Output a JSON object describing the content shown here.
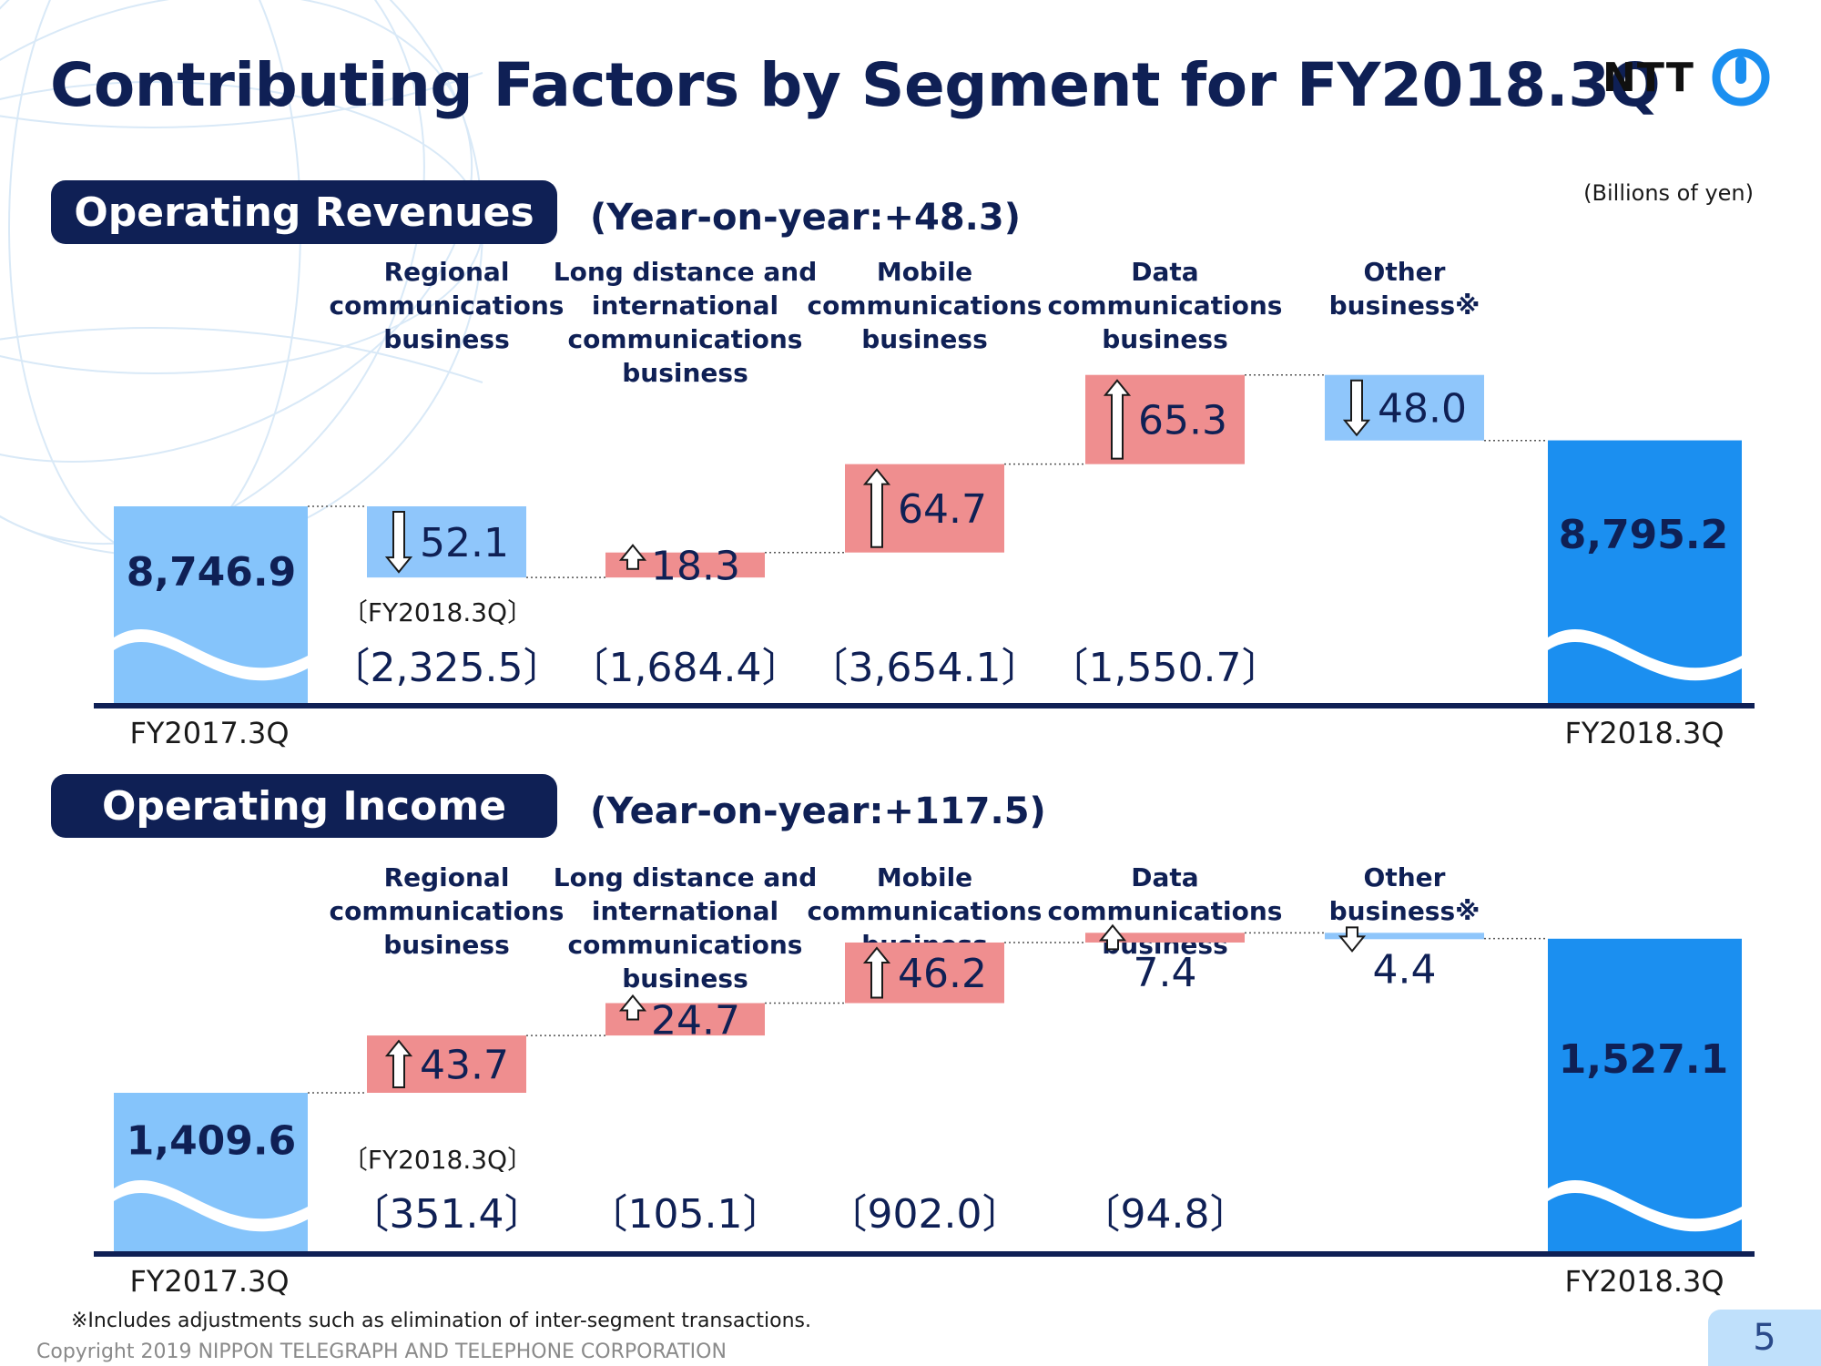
{
  "title": "Contributing Factors by Segment for FY2018.3Q",
  "logo": {
    "text": "NTT"
  },
  "units": "(Billions of yen)",
  "footnote": "※Includes adjustments such as elimination of inter-segment transactions.",
  "copyright": "Copyright 2019 NIPPON TELEGRAPH AND TELEPHONE CORPORATION",
  "page_number": "5",
  "colors": {
    "navy": "#0f2055",
    "increase": "#ef8e8f",
    "decrease": "#8fc6fb",
    "total_fy2017": "#85c4fb",
    "total_fy2018": "#1b8ff0"
  },
  "sections": [
    {
      "heading": "Operating Revenues",
      "yoy": "(Year-on-year:+48.3)"
    },
    {
      "heading": "Operating Income",
      "yoy": "(Year-on-year:+117.5)"
    }
  ],
  "chart_data": [
    {
      "type": "bar",
      "subtype": "waterfall",
      "title": "Operating Revenues",
      "start": {
        "label": "FY2017.3Q",
        "value": 8746.9,
        "value_label": "8,746.9"
      },
      "end": {
        "label": "FY2018.3Q",
        "value": 8795.2,
        "value_label": "8,795.2"
      },
      "steps": [
        {
          "category": "Regional communications business",
          "change": -52.1,
          "change_label": "52.1",
          "fy2018_label": "〔2,325.5〕"
        },
        {
          "category": "Long distance and international communications business",
          "change": 18.3,
          "change_label": "18.3",
          "fy2018_label": "〔1,684.4〕"
        },
        {
          "category": "Mobile communications business",
          "change": 64.7,
          "change_label": "64.7",
          "fy2018_label": "〔3,654.1〕"
        },
        {
          "category": "Data communications business",
          "change": 65.3,
          "change_label": "65.3",
          "fy2018_label": "〔1,550.7〕"
        },
        {
          "category": "Other business※",
          "change": -48.0,
          "change_label": "48.0",
          "fy2018_label": ""
        }
      ],
      "fy2018_caption": "〔FY2018.3Q〕"
    },
    {
      "type": "bar",
      "subtype": "waterfall",
      "title": "Operating Income",
      "start": {
        "label": "FY2017.3Q",
        "value": 1409.6,
        "value_label": "1,409.6"
      },
      "end": {
        "label": "FY2018.3Q",
        "value": 1527.1,
        "value_label": "1,527.1"
      },
      "steps": [
        {
          "category": "Regional communications business",
          "change": 43.7,
          "change_label": "43.7",
          "fy2018_label": "〔351.4〕"
        },
        {
          "category": "Long distance and international communications business",
          "change": 24.7,
          "change_label": "24.7",
          "fy2018_label": "〔105.1〕"
        },
        {
          "category": "Mobile communications business",
          "change": 46.2,
          "change_label": "46.2",
          "fy2018_label": "〔902.0〕"
        },
        {
          "category": "Data communications business",
          "change": 7.4,
          "change_label": "7.4",
          "fy2018_label": "〔94.8〕"
        },
        {
          "category": "Other business※",
          "change": -4.4,
          "change_label": "4.4",
          "fy2018_label": ""
        }
      ],
      "fy2018_caption": "〔FY2018.3Q〕"
    }
  ]
}
